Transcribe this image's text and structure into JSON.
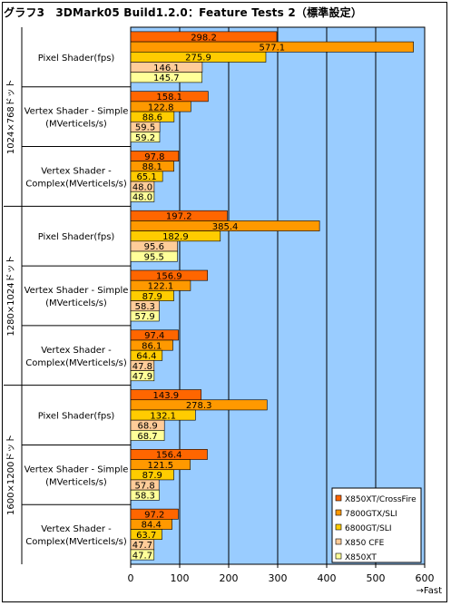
{
  "title": "グラフ3　3DMark05 Build1.2.0：Feature Tests 2（標準設定）",
  "x_unit_label": "→Fast",
  "chart_data": {
    "type": "bar",
    "orientation": "horizontal",
    "title": "グラフ3　3DMark05 Build1.2.0：Feature Tests 2（標準設定）",
    "xlim": [
      0,
      600
    ],
    "x_ticks": [
      "0",
      "100",
      "200",
      "300",
      "400",
      "500",
      "600"
    ],
    "grid": true,
    "legend_position": "bottom-right",
    "plot_bg": "#99ccff",
    "series": [
      {
        "name": "X850XT/CrossFire",
        "color": "#ff6600"
      },
      {
        "name": "7800GTX/SLI",
        "color": "#ff9900"
      },
      {
        "name": "6800GT/SLI",
        "color": "#ffcc00"
      },
      {
        "name": "X850 CFE",
        "color": "#ffcc99"
      },
      {
        "name": "X850XT",
        "color": "#ffff99"
      }
    ],
    "resolutions": [
      {
        "label": "1024×768ドット",
        "tests": [
          {
            "label": "Pixel Shader(fps)",
            "values": [
              298.2,
              577.1,
              275.9,
              146.1,
              145.7
            ]
          },
          {
            "label": "Vertex Shader - Simple (MVerticels/s)",
            "values": [
              158.1,
              122.8,
              88.6,
              59.5,
              59.2
            ]
          },
          {
            "label": "Vertex Shader - Complex(MVerticels/s)",
            "values": [
              97.8,
              88.1,
              65.1,
              48.0,
              48.0
            ]
          }
        ]
      },
      {
        "label": "1280×1024ドット",
        "tests": [
          {
            "label": "Pixel Shader(fps)",
            "values": [
              197.2,
              385.4,
              182.9,
              95.6,
              95.5
            ]
          },
          {
            "label": "Vertex Shader - Simple (MVerticels/s)",
            "values": [
              156.9,
              122.1,
              87.9,
              58.3,
              57.9
            ]
          },
          {
            "label": "Vertex Shader - Complex(MVerticels/s)",
            "values": [
              97.4,
              86.1,
              64.4,
              47.8,
              47.9
            ]
          }
        ]
      },
      {
        "label": "1600×1200ドット",
        "tests": [
          {
            "label": "Pixel Shader(fps)",
            "values": [
              143.9,
              278.3,
              132.1,
              68.9,
              68.7
            ]
          },
          {
            "label": "Vertex Shader - Simple (MVerticels/s)",
            "values": [
              156.4,
              121.5,
              87.9,
              57.8,
              58.3
            ]
          },
          {
            "label": "Vertex Shader - Complex(MVerticels/s)",
            "values": [
              97.2,
              84.4,
              63.7,
              47.7,
              47.7
            ]
          }
        ]
      }
    ]
  }
}
